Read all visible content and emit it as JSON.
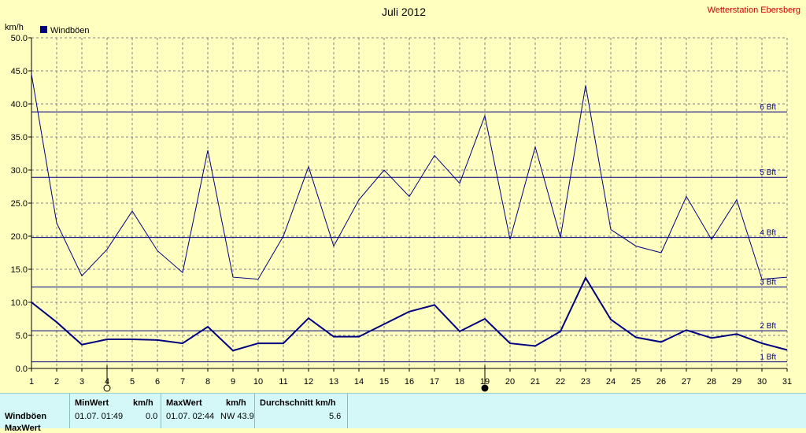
{
  "chart_data": {
    "type": "line",
    "title": "Juli 2012",
    "station": "Wetterstation Ebersberg",
    "ylabel": "km/h",
    "ylim": [
      0,
      50
    ],
    "yticks": [
      "0.0",
      "5.0",
      "10.0",
      "15.0",
      "20.0",
      "25.0",
      "30.0",
      "35.0",
      "40.0",
      "45.0",
      "50.0"
    ],
    "x": [
      1,
      2,
      3,
      4,
      5,
      6,
      7,
      8,
      9,
      10,
      11,
      12,
      13,
      14,
      15,
      16,
      17,
      18,
      19,
      20,
      21,
      22,
      23,
      24,
      25,
      26,
      27,
      28,
      29,
      30,
      31
    ],
    "grid": true,
    "legend": {
      "placement": "top-left",
      "entries": [
        "Windböen"
      ]
    },
    "series": [
      {
        "name": "Windböen",
        "color": "#000080",
        "line": "thin",
        "values": [
          44.5,
          22.0,
          14.0,
          18.0,
          23.8,
          17.8,
          14.5,
          33.0,
          13.8,
          13.5,
          20.0,
          30.5,
          18.5,
          25.5,
          30.0,
          26.0,
          32.2,
          28.0,
          38.2,
          19.5,
          33.5,
          19.8,
          42.8,
          21.0,
          18.5,
          17.5,
          26.0,
          19.5,
          25.5,
          13.5,
          13.8
        ]
      },
      {
        "name": "",
        "color": "#000080",
        "line": "thick",
        "values": [
          10.0,
          7.0,
          3.6,
          4.4,
          4.4,
          4.3,
          3.8,
          6.3,
          2.7,
          3.8,
          3.8,
          7.6,
          4.8,
          4.8,
          6.7,
          8.6,
          9.6,
          5.6,
          7.5,
          3.8,
          3.4,
          5.6,
          13.7,
          7.4,
          4.7,
          4.0,
          5.8,
          4.6,
          5.2,
          3.8,
          2.8
        ]
      }
    ],
    "beaufort": [
      {
        "label": "1 Bft",
        "value": 1.0
      },
      {
        "label": "2 Bft",
        "value": 5.7
      },
      {
        "label": "3 Bft",
        "value": 12.3
      },
      {
        "label": "4 Bft",
        "value": 19.8
      },
      {
        "label": "5 Bft",
        "value": 28.9
      },
      {
        "label": "6 Bft",
        "value": 38.8
      }
    ],
    "moon_phases": [
      {
        "day": 4,
        "phase": "full"
      },
      {
        "day": 19,
        "phase": "new"
      }
    ]
  },
  "stats": {
    "min_header": "MinWert",
    "max_header": "MaxWert",
    "unit_header": "km/h",
    "avg_header": "Durchschnitt km/h",
    "row_label_1": "Windböen",
    "row_label_2": "MaxWert",
    "min_time": "01.07.  01:49",
    "min_value": "0.0",
    "max_time": "01.07.  02:44",
    "max_dir_value": "NW 43.9",
    "avg_value": "5.6"
  }
}
